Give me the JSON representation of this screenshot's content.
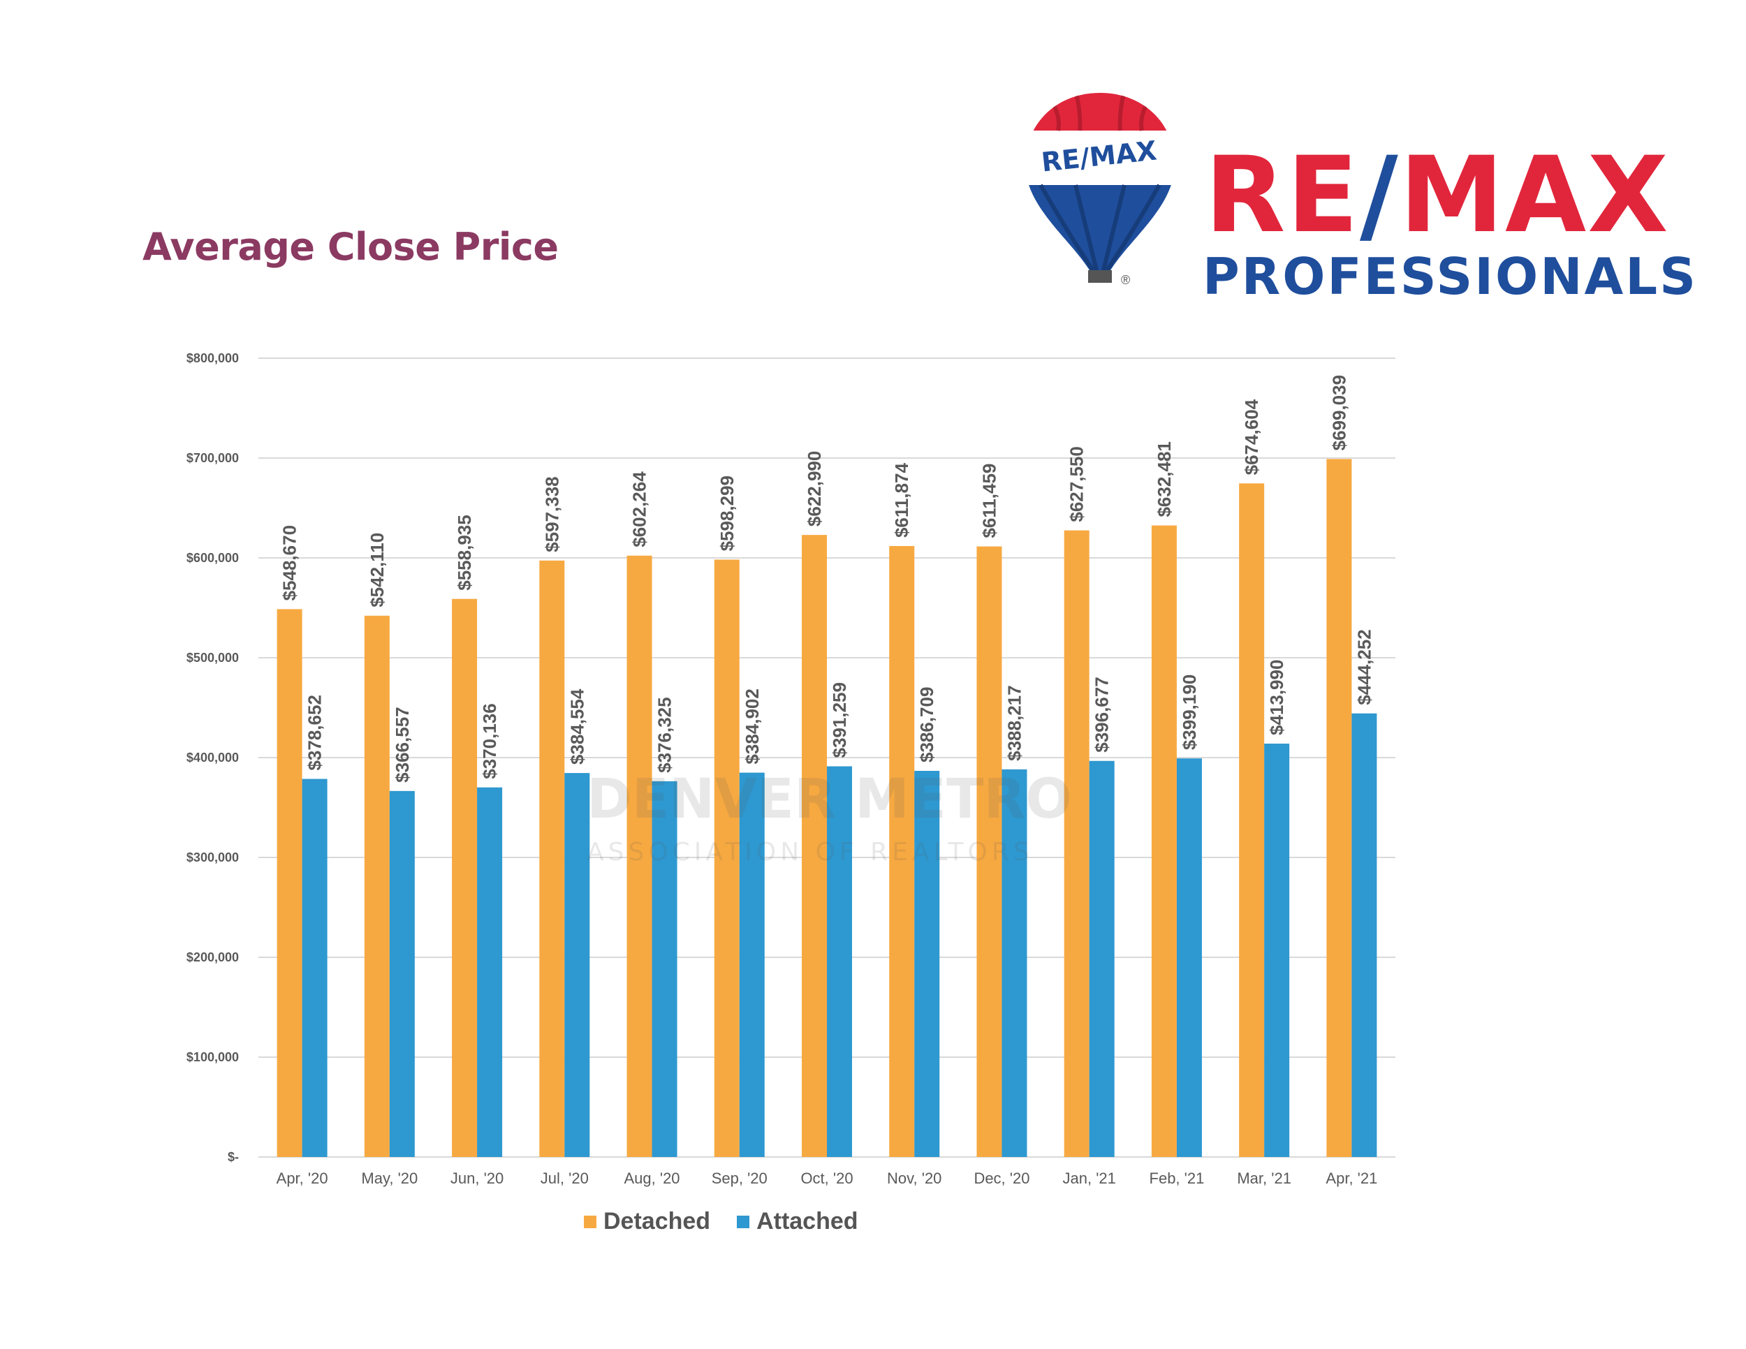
{
  "header": {
    "title": "Average Close Price"
  },
  "logo": {
    "balloon_text": "RE/MAX",
    "wordmark_left": "RE",
    "wordmark_slash": "/",
    "wordmark_right": "MAX",
    "subtitle": "PROFESSIONALS",
    "registered": "®"
  },
  "watermark": {
    "line1": "DENVER METRO",
    "line2": "ASSOCIATION OF REALTORS"
  },
  "colors": {
    "detached": "#F7A941",
    "attached": "#2E98D0",
    "title": "#8B3A62",
    "grid": "#D9D9D9",
    "text": "#595959"
  },
  "chart_data": {
    "type": "bar",
    "title": "Average Close Price",
    "categories": [
      "Apr, '20",
      "May, '20",
      "Jun, '20",
      "Jul, '20",
      "Aug, '20",
      "Sep, '20",
      "Oct, '20",
      "Nov, '20",
      "Dec, '20",
      "Jan, '21",
      "Feb, '21",
      "Mar, '21",
      "Apr, '21"
    ],
    "series": [
      {
        "name": "Detached",
        "color": "#F7A941",
        "values": [
          548670,
          542110,
          558935,
          597338,
          602264,
          598299,
          622990,
          611874,
          611459,
          627550,
          632481,
          674604,
          699039
        ],
        "labels": [
          "$548,670",
          "$542,110",
          "$558,935",
          "$597,338",
          "$602,264",
          "$598,299",
          "$622,990",
          "$611,874",
          "$611,459",
          "$627,550",
          "$632,481",
          "$674,604",
          "$699,039"
        ]
      },
      {
        "name": "Attached",
        "color": "#2E98D0",
        "values": [
          378652,
          366557,
          370136,
          384554,
          376325,
          384902,
          391259,
          386709,
          388217,
          396677,
          399190,
          413990,
          444252
        ],
        "labels": [
          "$378,652",
          "$366,557",
          "$370,136",
          "$384,554",
          "$376,325",
          "$384,902",
          "$391,259",
          "$386,709",
          "$388,217",
          "$396,677",
          "$399,190",
          "$413,990",
          "$444,252"
        ]
      }
    ],
    "yticks": [
      0,
      100000,
      200000,
      300000,
      400000,
      500000,
      600000,
      700000,
      800000
    ],
    "ytick_labels": [
      "$-",
      "$100,000",
      "$200,000",
      "$300,000",
      "$400,000",
      "$500,000",
      "$600,000",
      "$700,000",
      "$800,000"
    ],
    "ylim": [
      0,
      800000
    ],
    "grid": true,
    "legend": "bottom-center"
  }
}
